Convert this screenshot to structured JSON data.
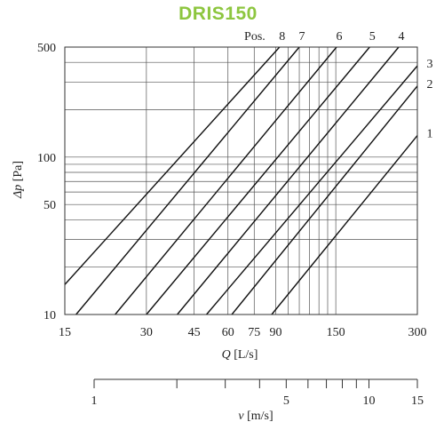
{
  "chart_data": [
    {
      "type": "line",
      "title": "DRIS150",
      "xlabel_symbol": "Q",
      "xlabel_unit": " [L/s]",
      "ylabel_symbol": "Δp",
      "ylabel_unit": " [Pa]",
      "x_scale": "log",
      "y_scale": "log",
      "xlim": [
        15,
        300
      ],
      "ylim": [
        10,
        500
      ],
      "x_ticks": [
        15,
        30,
        45,
        60,
        75,
        90,
        150,
        300
      ],
      "y_ticks": [
        10,
        50,
        100,
        500
      ],
      "x_grid": [
        15,
        30,
        45,
        60,
        75,
        90,
        100,
        110,
        120,
        130,
        140,
        150,
        300
      ],
      "y_grid": [
        10,
        20,
        30,
        40,
        50,
        60,
        70,
        80,
        90,
        100,
        200,
        300,
        400,
        500
      ],
      "series_label_prefix": "Pos.",
      "series": [
        {
          "name": "8",
          "x": [
            15,
            93
          ],
          "y": [
            15.5,
            500
          ]
        },
        {
          "name": "7",
          "x": [
            16.5,
            110
          ],
          "y": [
            10,
            500
          ]
        },
        {
          "name": "6",
          "x": [
            23,
            151
          ],
          "y": [
            10,
            500
          ]
        },
        {
          "name": "5",
          "x": [
            30,
            200
          ],
          "y": [
            10,
            500
          ]
        },
        {
          "name": "4",
          "x": [
            39,
            256
          ],
          "y": [
            10,
            500
          ]
        },
        {
          "name": "3",
          "x": [
            50,
            300
          ],
          "y": [
            10,
            380
          ]
        },
        {
          "name": "2",
          "x": [
            62,
            300
          ],
          "y": [
            10,
            283
          ]
        },
        {
          "name": "1",
          "x": [
            87,
            300
          ],
          "y": [
            10,
            137
          ]
        }
      ]
    },
    {
      "type": "axis",
      "xlabel_symbol": "v",
      "xlabel_unit": " [m/s]",
      "x_scale": "log",
      "xlim": [
        1,
        15
      ],
      "x_ticks": [
        1,
        5,
        10,
        15
      ],
      "x_minor_ticks": [
        2,
        3,
        4,
        6,
        7,
        8,
        9
      ]
    }
  ]
}
